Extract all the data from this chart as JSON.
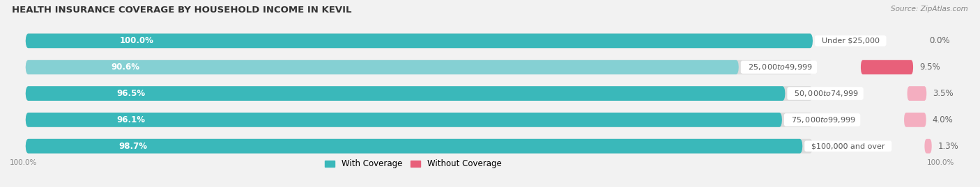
{
  "title": "HEALTH INSURANCE COVERAGE BY HOUSEHOLD INCOME IN KEVIL",
  "source": "Source: ZipAtlas.com",
  "categories": [
    "Under $25,000",
    "$25,000 to $49,999",
    "$50,000 to $74,999",
    "$75,000 to $99,999",
    "$100,000 and over"
  ],
  "with_coverage": [
    100.0,
    90.6,
    96.5,
    96.1,
    98.7
  ],
  "without_coverage": [
    0.0,
    9.5,
    3.5,
    4.0,
    1.3
  ],
  "color_with": [
    "#3ab8ba",
    "#85d0d3",
    "#3ab8ba",
    "#3ab8ba",
    "#3ab8ba"
  ],
  "color_without": [
    "#f4aec0",
    "#e8607a",
    "#f4aec0",
    "#f4aec0",
    "#f4aec0"
  ],
  "bg_row": [
    "#ebebeb",
    "#e4e4e4",
    "#ebebeb",
    "#e4e4e4",
    "#ebebeb"
  ],
  "track_color": "#dcdcdc",
  "legend_with": "With Coverage",
  "legend_without": "Without Coverage",
  "fig_width": 14.06,
  "fig_height": 2.69
}
